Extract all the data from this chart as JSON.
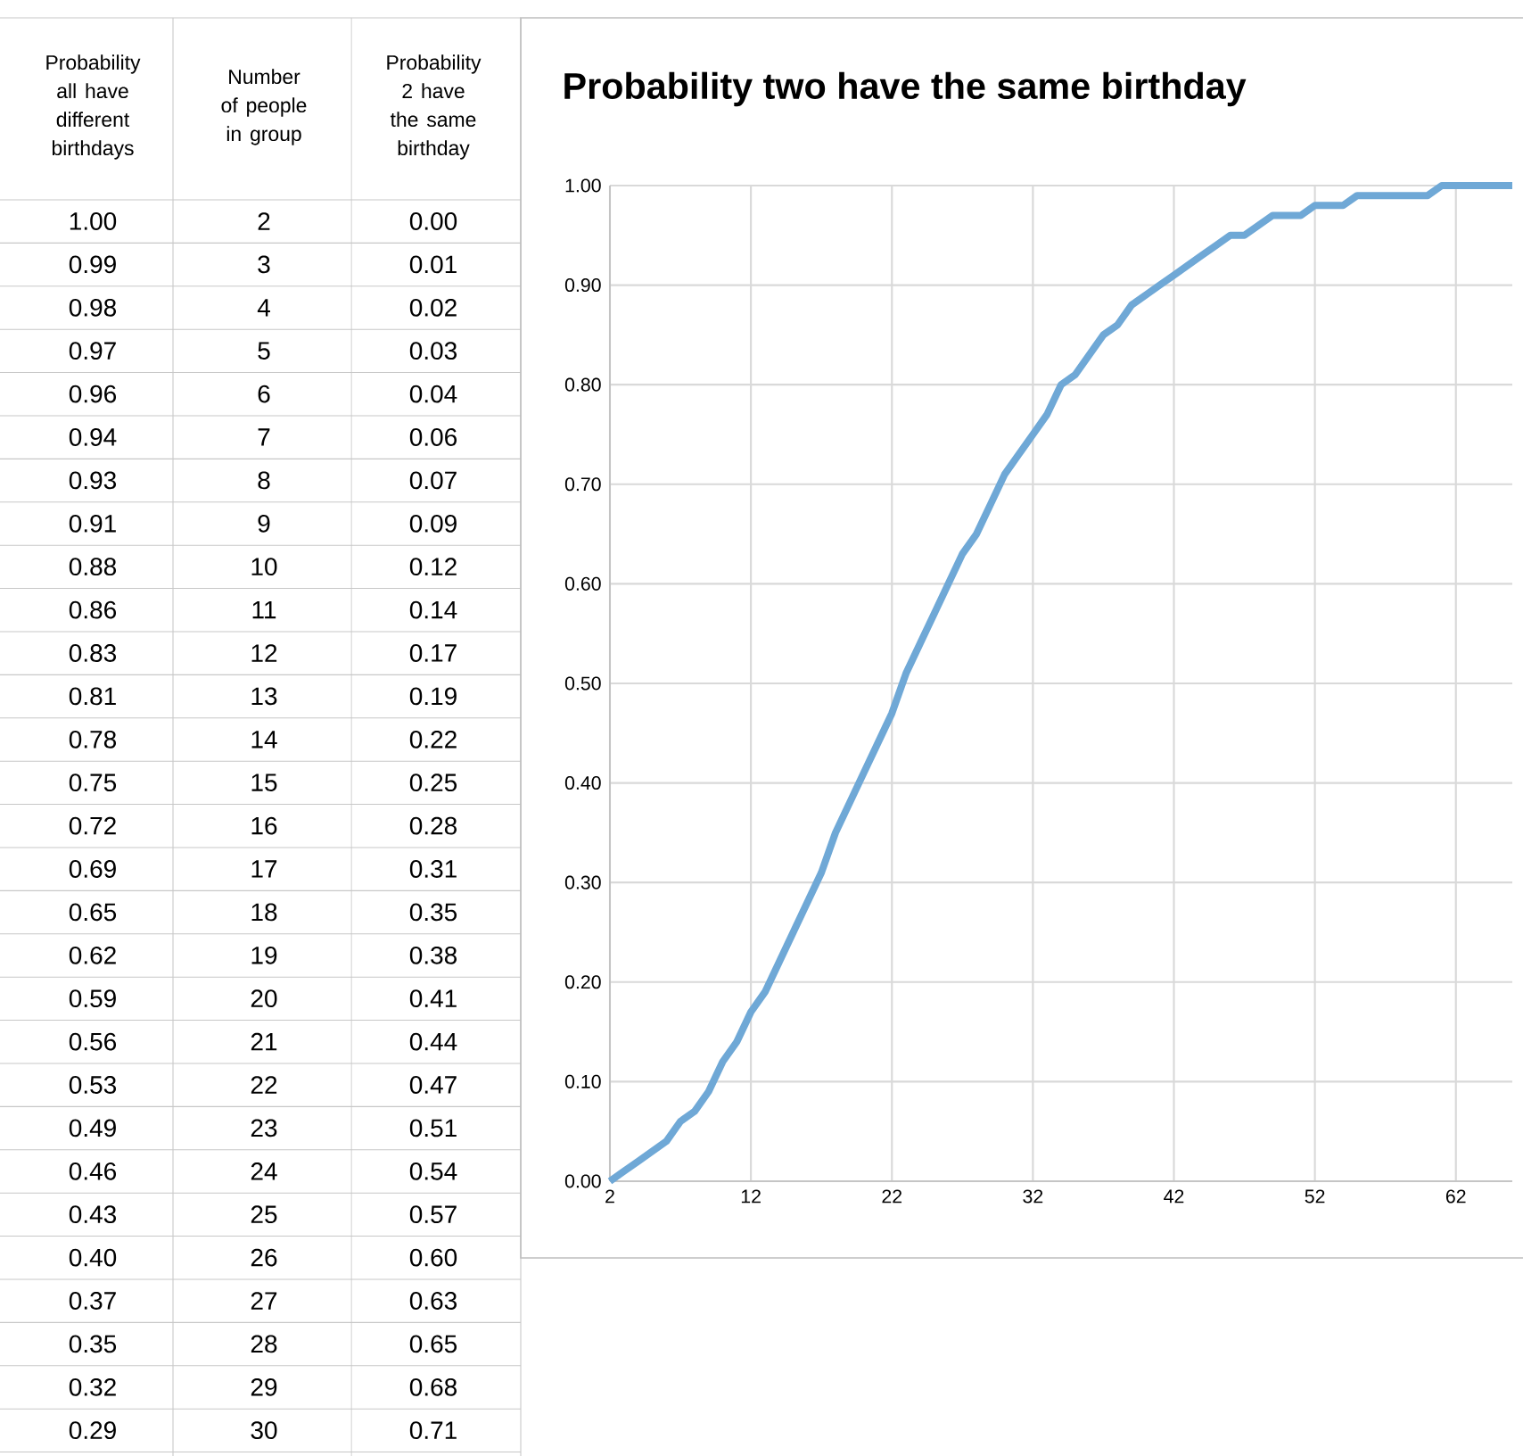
{
  "chart_data": [
    {
      "type": "other",
      "categories": [
        "2",
        "3",
        "4",
        "5",
        "6",
        "7",
        "8",
        "9",
        "10",
        "11",
        "12",
        "13",
        "14",
        "15",
        "16",
        "17",
        "18",
        "19",
        "20",
        "21",
        "22",
        "23",
        "24",
        "25",
        "26",
        "27",
        "28",
        "29",
        "30"
      ],
      "annotations": [
        "Probability all have different birthdays",
        "Number of people in group",
        "Probability 2 have the same birthday",
        "1.00",
        "0.00",
        "0.99",
        "0.01",
        "0.98",
        "0.02",
        "0.97",
        "0.03",
        "0.96",
        "0.04",
        "0.94",
        "0.06",
        "0.93",
        "0.07",
        "0.91",
        "0.09",
        "0.88",
        "0.12",
        "0.86",
        "0.14",
        "0.83",
        "0.17",
        "0.81",
        "0.19",
        "0.78",
        "0.22",
        "0.75",
        "0.25",
        "0.72",
        "0.28",
        "0.69",
        "0.31",
        "0.65",
        "0.35",
        "0.62",
        "0.38",
        "0.59",
        "0.41",
        "0.56",
        "0.44",
        "0.53",
        "0.47",
        "0.49",
        "0.51",
        "0.46",
        "0.54",
        "0.43",
        "0.57",
        "0.40",
        "0.60",
        "0.37",
        "0.63",
        "0.35",
        "0.65",
        "0.32",
        "0.68",
        "0.29",
        "0.71"
      ]
    },
    {
      "type": "line",
      "title": "Probability two have the same birthday",
      "x": [
        2,
        3,
        4,
        5,
        6,
        7,
        8,
        9,
        10,
        11,
        12,
        13,
        14,
        15,
        16,
        17,
        18,
        19,
        20,
        21,
        22,
        23,
        24,
        25,
        26,
        27,
        28,
        29,
        30,
        31,
        32,
        33,
        34,
        35,
        36,
        37,
        38,
        39,
        40,
        41,
        42,
        43,
        44,
        45,
        46,
        47,
        48,
        49,
        50,
        51,
        52,
        53,
        54,
        55,
        56,
        57,
        58,
        59,
        60,
        61,
        62,
        63,
        64,
        65,
        66
      ],
      "series": [
        {
          "color": "#6fa8d6",
          "values": [
            0.0,
            0.01,
            0.02,
            0.03,
            0.04,
            0.06,
            0.07,
            0.09,
            0.12,
            0.14,
            0.17,
            0.19,
            0.22,
            0.25,
            0.28,
            0.31,
            0.35,
            0.38,
            0.41,
            0.44,
            0.47,
            0.51,
            0.54,
            0.57,
            0.6,
            0.63,
            0.65,
            0.68,
            0.71,
            0.73,
            0.75,
            0.77,
            0.8,
            0.81,
            0.83,
            0.85,
            0.86,
            0.88,
            0.89,
            0.9,
            0.91,
            0.92,
            0.93,
            0.94,
            0.95,
            0.95,
            0.96,
            0.97,
            0.97,
            0.97,
            0.98,
            0.98,
            0.98,
            0.99,
            0.99,
            0.99,
            0.99,
            0.99,
            0.99,
            1.0,
            1.0,
            1.0,
            1.0,
            1.0,
            1.0
          ]
        }
      ],
      "xlim": [
        2,
        66
      ],
      "xticks": [
        2,
        12,
        22,
        32,
        42,
        52,
        62
      ],
      "ylim": [
        0,
        1
      ],
      "yticks": [
        {
          "value": 0,
          "label": "0.00"
        },
        {
          "value": 0.1,
          "label": "0.10"
        },
        {
          "value": 0.2,
          "label": "0.20"
        },
        {
          "value": 0.3,
          "label": "0.30"
        },
        {
          "value": 0.4,
          "label": "0.40"
        },
        {
          "value": 0.5,
          "label": "0.50"
        },
        {
          "value": 0.6,
          "label": "0.60"
        },
        {
          "value": 0.7,
          "label": "0.70"
        },
        {
          "value": 0.8,
          "label": "0.80"
        },
        {
          "value": 0.9,
          "label": "0.90"
        },
        {
          "value": 1,
          "label": "1.00"
        }
      ],
      "grid": true
    }
  ]
}
